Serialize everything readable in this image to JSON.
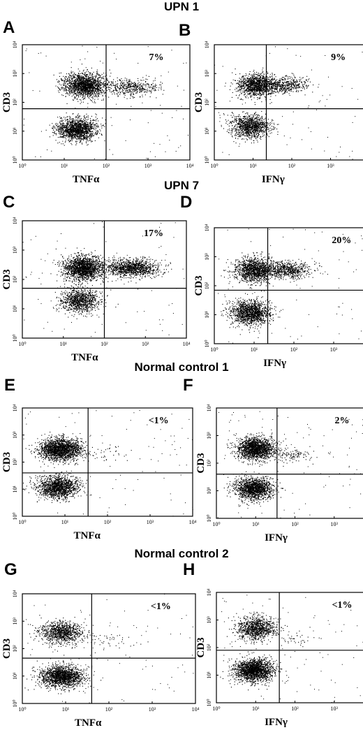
{
  "groups": [
    {
      "title": "UPN 1"
    },
    {
      "title": "UPN 7"
    },
    {
      "title": "Normal control 1"
    },
    {
      "title": "Normal control 2"
    }
  ],
  "tick_labels": [
    "10⁰",
    "10¹",
    "10²",
    "10³",
    "10⁴"
  ],
  "chart_data": [
    {
      "type": "scatter",
      "panel": "A",
      "xlabel": "TNFα",
      "ylabel": "CD3",
      "annotation": "7%",
      "x_scale": "log",
      "y_scale": "log",
      "xlim": [
        1,
        10000
      ],
      "ylim": [
        1,
        10000
      ],
      "quadrant_x": 100,
      "quadrant_y": 60,
      "clusters": [
        {
          "x": 30,
          "y": 400,
          "count": 1700
        },
        {
          "x": 20,
          "y": 12,
          "count": 1500
        },
        {
          "x": 400,
          "y": 350,
          "count": 450
        }
      ]
    },
    {
      "type": "scatter",
      "panel": "B",
      "xlabel": "IFNγ",
      "ylabel": "CD3",
      "annotation": "9%",
      "x_scale": "log",
      "y_scale": "log",
      "xlim": [
        1,
        10000
      ],
      "ylim": [
        1,
        10000
      ],
      "quadrant_x": 22,
      "quadrant_y": 60,
      "clusters": [
        {
          "x": 12,
          "y": 400,
          "count": 1200
        },
        {
          "x": 8,
          "y": 15,
          "count": 1100
        },
        {
          "x": 60,
          "y": 400,
          "count": 500
        }
      ]
    },
    {
      "type": "scatter",
      "panel": "C",
      "xlabel": "TNFα",
      "ylabel": "CD3",
      "annotation": "17%",
      "x_scale": "log",
      "y_scale": "log",
      "xlim": [
        1,
        10000
      ],
      "ylim": [
        1,
        10000
      ],
      "quadrant_x": 100,
      "quadrant_y": 50,
      "clusters": [
        {
          "x": 30,
          "y": 250,
          "count": 1800
        },
        {
          "x": 25,
          "y": 20,
          "count": 1000
        },
        {
          "x": 450,
          "y": 250,
          "count": 1200
        }
      ]
    },
    {
      "type": "scatter",
      "panel": "D",
      "xlabel": "IFNγ",
      "ylabel": "CD3",
      "annotation": "20%",
      "x_scale": "log",
      "y_scale": "log",
      "xlim": [
        1,
        10000
      ],
      "ylim": [
        1,
        10000
      ],
      "quadrant_x": 22,
      "quadrant_y": 70,
      "clusters": [
        {
          "x": 10,
          "y": 350,
          "count": 1300
        },
        {
          "x": 8,
          "y": 12,
          "count": 1400
        },
        {
          "x": 60,
          "y": 350,
          "count": 700
        }
      ]
    },
    {
      "type": "scatter",
      "panel": "E",
      "xlabel": "TNFα",
      "ylabel": "CD3",
      "annotation": "<1%",
      "x_scale": "log",
      "y_scale": "log",
      "xlim": [
        1,
        10000
      ],
      "ylim": [
        1,
        10000
      ],
      "quadrant_x": 35,
      "quadrant_y": 40,
      "clusters": [
        {
          "x": 8,
          "y": 300,
          "count": 1900
        },
        {
          "x": 7,
          "y": 12,
          "count": 1400
        },
        {
          "x": 80,
          "y": 200,
          "count": 40
        }
      ]
    },
    {
      "type": "scatter",
      "panel": "F",
      "xlabel": "IFNγ",
      "ylabel": "CD3",
      "annotation": "2%",
      "x_scale": "log",
      "y_scale": "log",
      "xlim": [
        1,
        10000
      ],
      "ylim": [
        1,
        10000
      ],
      "quadrant_x": 35,
      "quadrant_y": 40,
      "clusters": [
        {
          "x": 10,
          "y": 350,
          "count": 1700
        },
        {
          "x": 9,
          "y": 12,
          "count": 1500
        },
        {
          "x": 80,
          "y": 200,
          "count": 120
        }
      ]
    },
    {
      "type": "scatter",
      "panel": "G",
      "xlabel": "TNFα",
      "ylabel": "CD3",
      "annotation": "<1%",
      "x_scale": "log",
      "y_scale": "log",
      "xlim": [
        1,
        10000
      ],
      "ylim": [
        1,
        10000
      ],
      "quadrant_x": 40,
      "quadrant_y": 45,
      "clusters": [
        {
          "x": 8,
          "y": 400,
          "count": 1000
        },
        {
          "x": 8,
          "y": 10,
          "count": 1700
        },
        {
          "x": 100,
          "y": 200,
          "count": 40
        }
      ]
    },
    {
      "type": "scatter",
      "panel": "H",
      "xlabel": "IFNγ",
      "ylabel": "CD3",
      "annotation": "<1%",
      "x_scale": "log",
      "y_scale": "log",
      "xlim": [
        1,
        10000
      ],
      "ylim": [
        1,
        10000
      ],
      "quadrant_x": 40,
      "quadrant_y": 80,
      "clusters": [
        {
          "x": 10,
          "y": 500,
          "count": 1000
        },
        {
          "x": 9,
          "y": 15,
          "count": 1900
        },
        {
          "x": 100,
          "y": 200,
          "count": 40
        }
      ]
    }
  ]
}
